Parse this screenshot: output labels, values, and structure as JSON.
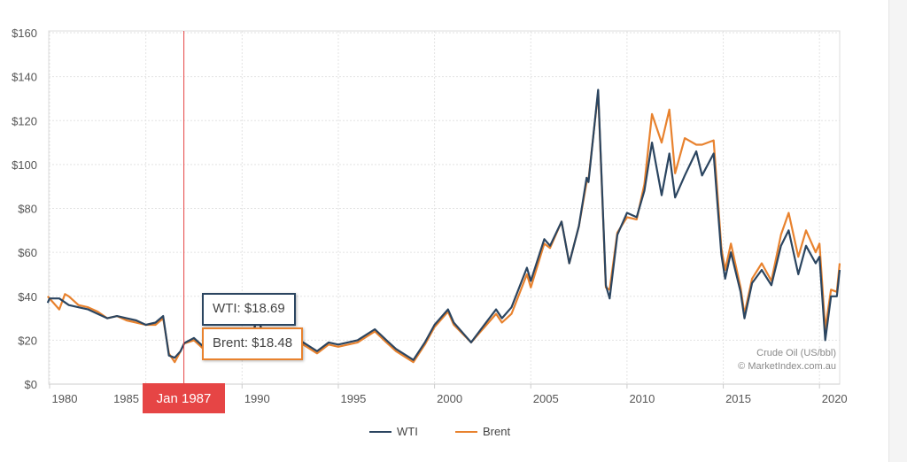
{
  "chart_data": {
    "type": "line",
    "title": "",
    "xlabel": "",
    "ylabel": "",
    "xlim": [
      1979.9,
      2021.05
    ],
    "ylim": [
      0,
      160
    ],
    "grid": true,
    "legend_position": "bottom",
    "y_ticks": [
      "$0",
      "$20",
      "$40",
      "$60",
      "$80",
      "$100",
      "$120",
      "$140",
      "$160"
    ],
    "y_tick_values": [
      0,
      20,
      40,
      60,
      80,
      100,
      120,
      140,
      160
    ],
    "x_ticks": [
      "1980",
      "1985",
      "1990",
      "1995",
      "2000",
      "2005",
      "2010",
      "2015",
      "2020"
    ],
    "x_tick_values": [
      1980,
      1985,
      1990,
      1995,
      2000,
      2005,
      2010,
      2015,
      2020
    ],
    "series": [
      {
        "name": "WTI",
        "color": "#2b4560",
        "points": [
          [
            1979.9,
            37
          ],
          [
            1980,
            39
          ],
          [
            1980.5,
            39
          ],
          [
            1981,
            36
          ],
          [
            1981.5,
            35
          ],
          [
            1982,
            34
          ],
          [
            1982.5,
            32
          ],
          [
            1983,
            30
          ],
          [
            1983.5,
            31
          ],
          [
            1984,
            30
          ],
          [
            1984.5,
            29
          ],
          [
            1985,
            27
          ],
          [
            1985.5,
            28
          ],
          [
            1985.9,
            31
          ],
          [
            1986.2,
            13
          ],
          [
            1986.5,
            12
          ],
          [
            1986.8,
            15
          ],
          [
            1987,
            18.69
          ],
          [
            1987.5,
            21
          ],
          [
            1988,
            17
          ],
          [
            1988.8,
            14
          ],
          [
            1989,
            18
          ],
          [
            1989.5,
            20
          ],
          [
            1990.5,
            18
          ],
          [
            1990.8,
            33
          ],
          [
            1991,
            25
          ],
          [
            1991.5,
            21
          ],
          [
            1992,
            19
          ],
          [
            1992.5,
            22
          ],
          [
            1993,
            20
          ],
          [
            1993.9,
            15
          ],
          [
            1994.5,
            19
          ],
          [
            1995,
            18
          ],
          [
            1996,
            20
          ],
          [
            1996.9,
            25
          ],
          [
            1997.5,
            20
          ],
          [
            1998,
            16
          ],
          [
            1998.9,
            11
          ],
          [
            1999.5,
            19
          ],
          [
            2000,
            27
          ],
          [
            2000.7,
            34
          ],
          [
            2001,
            28
          ],
          [
            2001.9,
            19
          ],
          [
            2002.5,
            26
          ],
          [
            2003.2,
            34
          ],
          [
            2003.5,
            30
          ],
          [
            2004,
            35
          ],
          [
            2004.8,
            53
          ],
          [
            2005,
            47
          ],
          [
            2005.7,
            66
          ],
          [
            2006,
            63
          ],
          [
            2006.6,
            74
          ],
          [
            2007,
            55
          ],
          [
            2007.5,
            72
          ],
          [
            2007.9,
            94
          ],
          [
            2008,
            92
          ],
          [
            2008.5,
            134
          ],
          [
            2008.9,
            45
          ],
          [
            2009.1,
            39
          ],
          [
            2009.5,
            68
          ],
          [
            2010,
            78
          ],
          [
            2010.5,
            76
          ],
          [
            2010.9,
            88
          ],
          [
            2011.3,
            110
          ],
          [
            2011.8,
            86
          ],
          [
            2012.2,
            105
          ],
          [
            2012.5,
            85
          ],
          [
            2013,
            95
          ],
          [
            2013.6,
            106
          ],
          [
            2013.9,
            95
          ],
          [
            2014.5,
            105
          ],
          [
            2014.9,
            59
          ],
          [
            2015.1,
            48
          ],
          [
            2015.4,
            60
          ],
          [
            2015.9,
            42
          ],
          [
            2016.1,
            30
          ],
          [
            2016.5,
            46
          ],
          [
            2017,
            52
          ],
          [
            2017.5,
            45
          ],
          [
            2018,
            63
          ],
          [
            2018.4,
            70
          ],
          [
            2018.9,
            50
          ],
          [
            2019.3,
            63
          ],
          [
            2019.8,
            55
          ],
          [
            2020,
            58
          ],
          [
            2020.3,
            20
          ],
          [
            2020.6,
            40
          ],
          [
            2020.9,
            40
          ],
          [
            2021.05,
            52
          ]
        ]
      },
      {
        "name": "Brent",
        "color": "#e8822e",
        "points": [
          [
            1979.9,
            40
          ],
          [
            1980,
            39
          ],
          [
            1980.5,
            34
          ],
          [
            1980.8,
            41
          ],
          [
            1981,
            40
          ],
          [
            1981.5,
            36
          ],
          [
            1982,
            35
          ],
          [
            1982.5,
            33
          ],
          [
            1983,
            30
          ],
          [
            1983.5,
            31
          ],
          [
            1984,
            29
          ],
          [
            1984.5,
            28
          ],
          [
            1985,
            27
          ],
          [
            1985.5,
            27
          ],
          [
            1985.9,
            30
          ],
          [
            1986.2,
            14
          ],
          [
            1986.5,
            10
          ],
          [
            1986.8,
            15
          ],
          [
            1987,
            18.48
          ],
          [
            1987.5,
            20
          ],
          [
            1988,
            16
          ],
          [
            1988.8,
            13
          ],
          [
            1989,
            17
          ],
          [
            1989.5,
            19
          ],
          [
            1990.5,
            17
          ],
          [
            1990.8,
            36
          ],
          [
            1991,
            24
          ],
          [
            1991.5,
            20
          ],
          [
            1992,
            19
          ],
          [
            1992.5,
            21
          ],
          [
            1993,
            19
          ],
          [
            1993.9,
            14
          ],
          [
            1994.5,
            18
          ],
          [
            1995,
            17
          ],
          [
            1996,
            19
          ],
          [
            1996.9,
            24
          ],
          [
            1997.5,
            19
          ],
          [
            1998,
            15
          ],
          [
            1998.9,
            10
          ],
          [
            1999.5,
            18
          ],
          [
            2000,
            26
          ],
          [
            2000.7,
            33
          ],
          [
            2001,
            27
          ],
          [
            2001.9,
            19
          ],
          [
            2002.5,
            25
          ],
          [
            2003.2,
            32
          ],
          [
            2003.5,
            28
          ],
          [
            2004,
            32
          ],
          [
            2004.8,
            50
          ],
          [
            2005,
            44
          ],
          [
            2005.7,
            64
          ],
          [
            2006,
            62
          ],
          [
            2006.6,
            74
          ],
          [
            2007,
            55
          ],
          [
            2007.5,
            72
          ],
          [
            2007.9,
            92
          ],
          [
            2008,
            93
          ],
          [
            2008.5,
            133
          ],
          [
            2008.9,
            44
          ],
          [
            2009.1,
            43
          ],
          [
            2009.5,
            69
          ],
          [
            2010,
            76
          ],
          [
            2010.5,
            75
          ],
          [
            2010.9,
            91
          ],
          [
            2011.3,
            123
          ],
          [
            2011.8,
            110
          ],
          [
            2012.2,
            125
          ],
          [
            2012.5,
            96
          ],
          [
            2013,
            112
          ],
          [
            2013.6,
            109
          ],
          [
            2013.9,
            109
          ],
          [
            2014.5,
            111
          ],
          [
            2014.9,
            62
          ],
          [
            2015.1,
            52
          ],
          [
            2015.4,
            64
          ],
          [
            2015.9,
            44
          ],
          [
            2016.1,
            32
          ],
          [
            2016.5,
            48
          ],
          [
            2017,
            55
          ],
          [
            2017.5,
            47
          ],
          [
            2018,
            68
          ],
          [
            2018.4,
            78
          ],
          [
            2018.9,
            58
          ],
          [
            2019.3,
            70
          ],
          [
            2019.8,
            60
          ],
          [
            2020,
            64
          ],
          [
            2020.3,
            25
          ],
          [
            2020.6,
            43
          ],
          [
            2020.9,
            42
          ],
          [
            2021.05,
            55
          ]
        ]
      }
    ],
    "crosshair": {
      "label": "Jan 1987",
      "x": 1987.0
    },
    "tooltip": {
      "wti": "WTI: $18.69",
      "brent": "Brent: $18.48"
    },
    "annotations": [
      "Crude Oil (US/bbl)",
      "© MarketIndex.com.au"
    ]
  },
  "colors": {
    "crosshair": "#e64545",
    "grid": "#e3e3e3"
  }
}
